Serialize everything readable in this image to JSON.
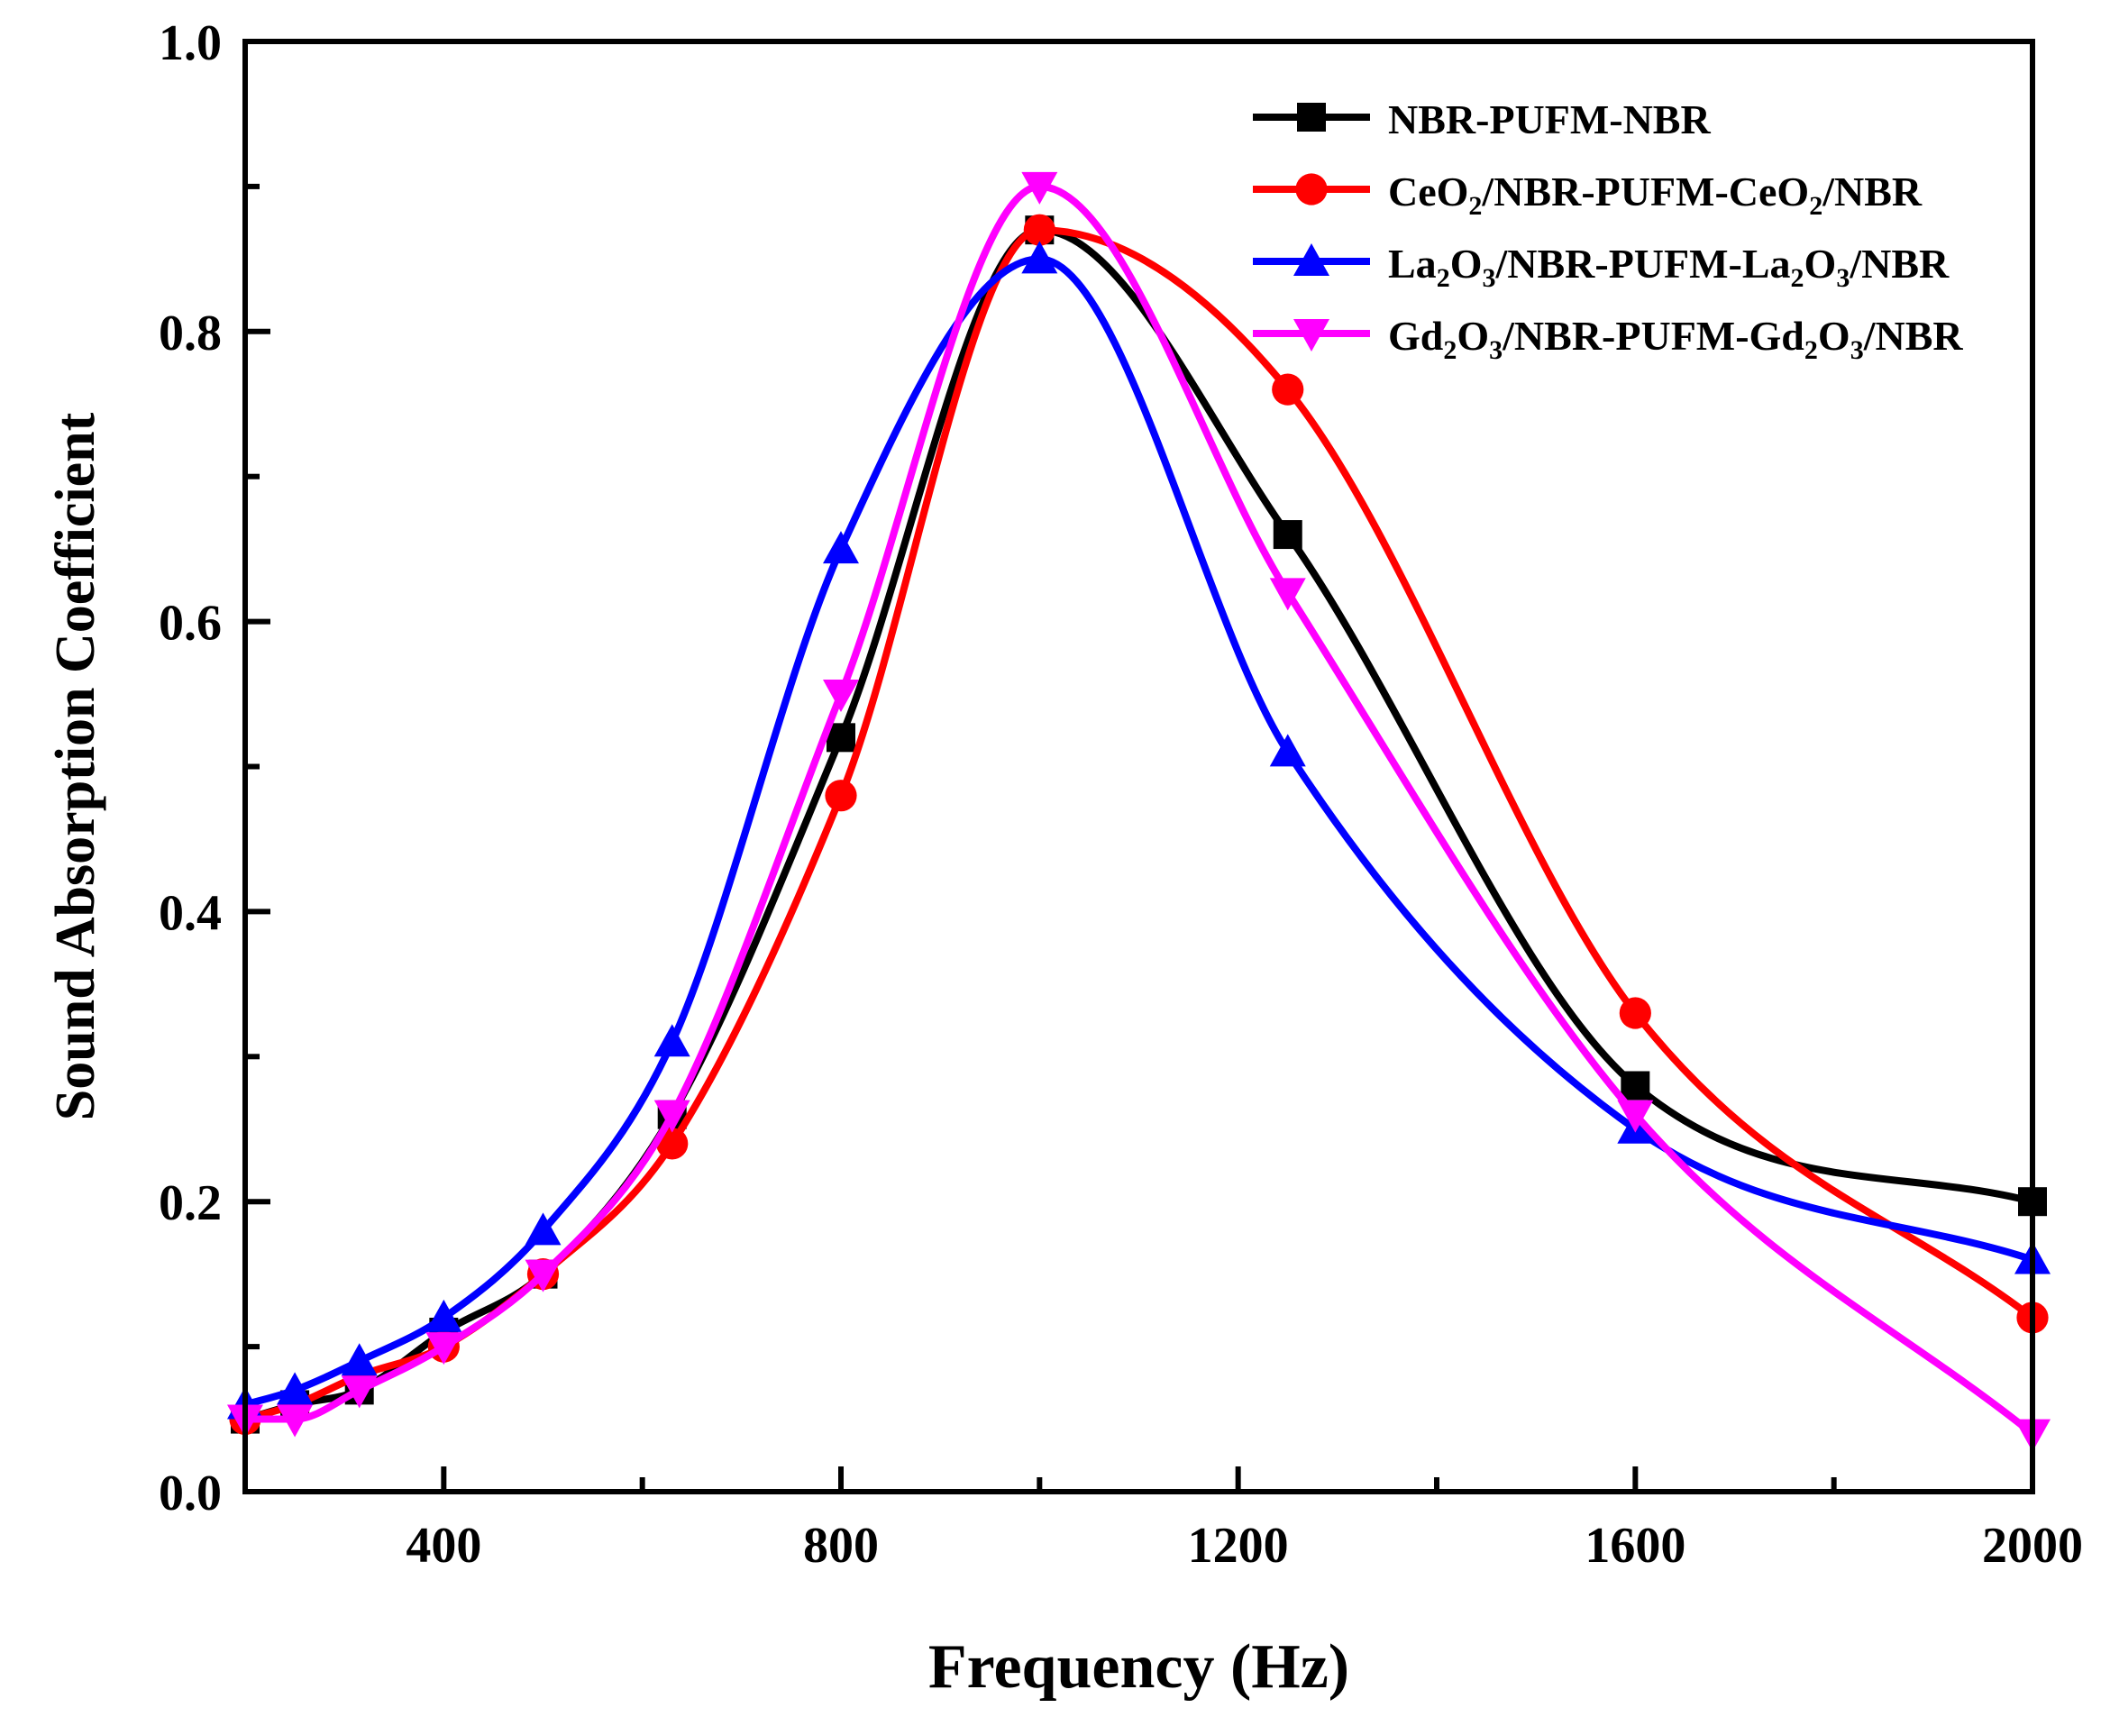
{
  "chart_data": {
    "type": "line",
    "xlabel": "Frequency (Hz)",
    "ylabel": "Sound Absorption Coefficient",
    "xlim": [
      200,
      2000
    ],
    "ylim": [
      0.0,
      1.0
    ],
    "x_ticks": [
      400,
      800,
      1200,
      1600,
      2000
    ],
    "x_tick_labels": [
      "400",
      "800",
      "1200",
      "1600",
      "2000"
    ],
    "y_ticks": [
      0.0,
      0.2,
      0.4,
      0.6,
      0.8,
      1.0
    ],
    "y_tick_labels": [
      "0.0",
      "0.2",
      "0.4",
      "0.6",
      "0.8",
      "1.0"
    ],
    "grid": false,
    "legend_position": "top-right",
    "x": [
      200,
      250,
      315,
      400,
      500,
      630,
      800,
      1000,
      1250,
      1600,
      2000
    ],
    "series": [
      {
        "name": "NBR-PUFM-NBR",
        "name_parts": [
          {
            "t": "NBR-PUFM-NBR",
            "sub": false
          }
        ],
        "color": "#000000",
        "marker": "square",
        "values": [
          0.05,
          0.06,
          0.07,
          0.11,
          0.15,
          0.26,
          0.52,
          0.87,
          0.66,
          0.28,
          0.2
        ]
      },
      {
        "name": "CeO2/NBR-PUFM-CeO2/NBR",
        "name_parts": [
          {
            "t": "CeO",
            "sub": false
          },
          {
            "t": "2",
            "sub": true
          },
          {
            "t": "/NBR-PUFM-CeO",
            "sub": false
          },
          {
            "t": "2",
            "sub": true
          },
          {
            "t": "/NBR",
            "sub": false
          }
        ],
        "color": "#ff0000",
        "marker": "circle",
        "values": [
          0.05,
          0.06,
          0.08,
          0.1,
          0.15,
          0.24,
          0.48,
          0.87,
          0.76,
          0.33,
          0.12
        ]
      },
      {
        "name": "La2O3/NBR-PUFM-La2O3/NBR",
        "name_parts": [
          {
            "t": "La",
            "sub": false
          },
          {
            "t": "2",
            "sub": true
          },
          {
            "t": "O",
            "sub": false
          },
          {
            "t": "3",
            "sub": true
          },
          {
            "t": "/NBR-PUFM-La",
            "sub": false
          },
          {
            "t": "2",
            "sub": true
          },
          {
            "t": "O",
            "sub": false
          },
          {
            "t": "3",
            "sub": true
          },
          {
            "t": "/NBR",
            "sub": false
          }
        ],
        "color": "#0000ff",
        "marker": "triangle-up",
        "values": [
          0.06,
          0.07,
          0.09,
          0.12,
          0.18,
          0.31,
          0.65,
          0.85,
          0.51,
          0.25,
          0.16
        ]
      },
      {
        "name": "Gd2O3/NBR-PUFM-Gd2O3/NBR",
        "name_parts": [
          {
            "t": "Gd",
            "sub": false
          },
          {
            "t": "2",
            "sub": true
          },
          {
            "t": "O",
            "sub": false
          },
          {
            "t": "3",
            "sub": true
          },
          {
            "t": "/NBR-PUFM-Gd",
            "sub": false
          },
          {
            "t": "2",
            "sub": true
          },
          {
            "t": "O",
            "sub": false
          },
          {
            "t": "3",
            "sub": true
          },
          {
            "t": "/NBR",
            "sub": false
          }
        ],
        "color": "#ff00ff",
        "marker": "triangle-down",
        "values": [
          0.05,
          0.05,
          0.07,
          0.1,
          0.15,
          0.26,
          0.55,
          0.9,
          0.62,
          0.26,
          0.04
        ]
      }
    ]
  }
}
